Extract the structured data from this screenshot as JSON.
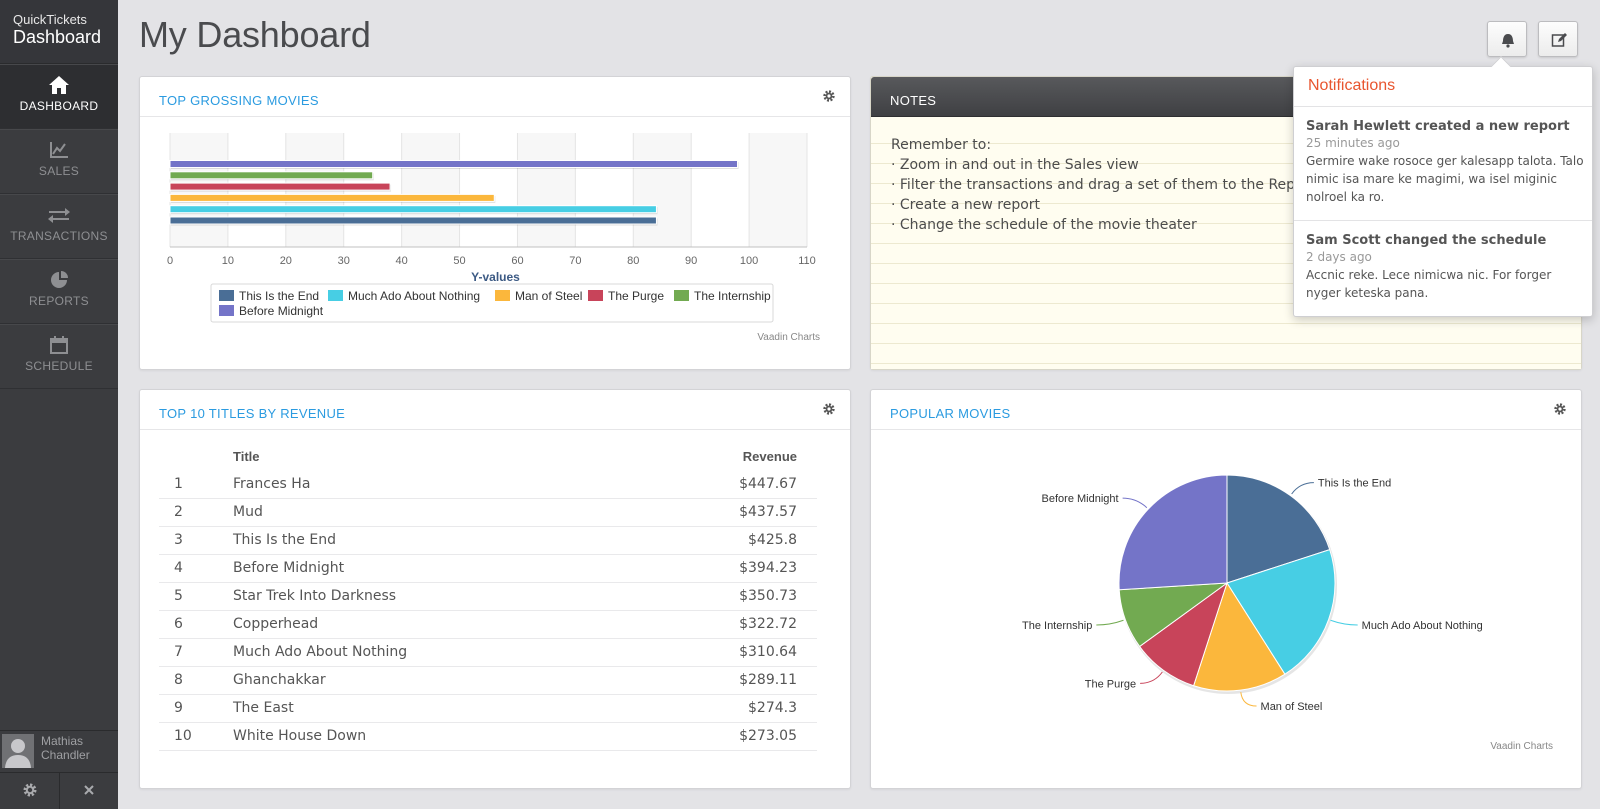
{
  "brand": {
    "line1": "QuickTickets",
    "line2": "Dashboard"
  },
  "nav": [
    {
      "label": "DASHBOARD",
      "icon": "home-icon",
      "active": true
    },
    {
      "label": "SALES",
      "icon": "chart-line-icon",
      "active": false
    },
    {
      "label": "TRANSACTIONS",
      "icon": "arrows-exchange-icon",
      "active": false
    },
    {
      "label": "REPORTS",
      "icon": "pie-icon",
      "active": false
    },
    {
      "label": "SCHEDULE",
      "icon": "calendar-icon",
      "active": false
    }
  ],
  "user": {
    "first": "Mathias",
    "last": "Chandler"
  },
  "header": {
    "title": "My Dashboard"
  },
  "panels": {
    "top_grossing": {
      "title": "TOP GROSSING MOVIES",
      "credit": "Vaadin Charts"
    },
    "notes": {
      "title": "NOTES",
      "lines": [
        "Remember to:",
        "· Zoom in and out in the Sales view",
        "· Filter the transactions and drag a set of them to the Reports tab",
        "· Create a new report",
        "· Change the schedule of the movie theater"
      ]
    },
    "top10": {
      "title": "TOP 10 TITLES BY REVENUE",
      "col_title": "Title",
      "col_revenue": "Revenue",
      "rows": [
        {
          "n": "1",
          "title": "Frances Ha",
          "revenue": "$447.67"
        },
        {
          "n": "2",
          "title": "Mud",
          "revenue": "$437.57"
        },
        {
          "n": "3",
          "title": "This Is the End",
          "revenue": "$425.8"
        },
        {
          "n": "4",
          "title": "Before Midnight",
          "revenue": "$394.23"
        },
        {
          "n": "5",
          "title": "Star Trek Into Darkness",
          "revenue": "$350.73"
        },
        {
          "n": "6",
          "title": "Copperhead",
          "revenue": "$322.72"
        },
        {
          "n": "7",
          "title": "Much Ado About Nothing",
          "revenue": "$310.64"
        },
        {
          "n": "8",
          "title": "Ghanchakkar",
          "revenue": "$289.11"
        },
        {
          "n": "9",
          "title": "The East",
          "revenue": "$274.3"
        },
        {
          "n": "10",
          "title": "White House Down",
          "revenue": "$273.05"
        }
      ]
    },
    "popular": {
      "title": "POPULAR MOVIES",
      "credit": "Vaadin Charts"
    }
  },
  "notifications": {
    "title": "Notifications",
    "items": [
      {
        "who": "Sarah Hewlett created a new report",
        "when": "25 minutes ago",
        "body": "Germire wake rosoce ger kalesapp talota. Talo nimic isa mare ke magimi, wa isel miginic nolroel ka ro."
      },
      {
        "who": "Sam Scott changed the schedule",
        "when": "2 days ago",
        "body": "Accnic reke. Lece nimicwa nic. For forger nyger keteska pana."
      }
    ]
  },
  "colors": {
    "accent": "#2b9be0",
    "notif_title": "#e8552f",
    "s1": "#4a6e96",
    "s2": "#47cee4",
    "s3": "#fbb73c",
    "s4": "#c8445a",
    "s5": "#72aa51",
    "s6": "#7474c8"
  },
  "chart_data": [
    {
      "type": "bar",
      "orientation": "horizontal",
      "title": "TOP GROSSING MOVIES",
      "xlabel": "Y-values",
      "xlim": [
        0,
        110
      ],
      "ticks": [
        0,
        10,
        20,
        30,
        40,
        50,
        60,
        70,
        80,
        90,
        100,
        110
      ],
      "series": [
        {
          "name": "This Is the End",
          "value": 84
        },
        {
          "name": "Much Ado About Nothing",
          "value": 84
        },
        {
          "name": "Man of Steel",
          "value": 56
        },
        {
          "name": "The Purge",
          "value": 38
        },
        {
          "name": "The Internship",
          "value": 35
        },
        {
          "name": "Before Midnight",
          "value": 98
        }
      ],
      "legend": "bottom"
    },
    {
      "type": "pie",
      "title": "POPULAR MOVIES",
      "slices": [
        {
          "name": "This Is the End",
          "value": 20
        },
        {
          "name": "Much Ado About Nothing",
          "value": 21
        },
        {
          "name": "Man of Steel",
          "value": 14
        },
        {
          "name": "The Purge",
          "value": 10
        },
        {
          "name": "The Internship",
          "value": 9
        },
        {
          "name": "Before Midnight",
          "value": 26
        }
      ]
    }
  ]
}
